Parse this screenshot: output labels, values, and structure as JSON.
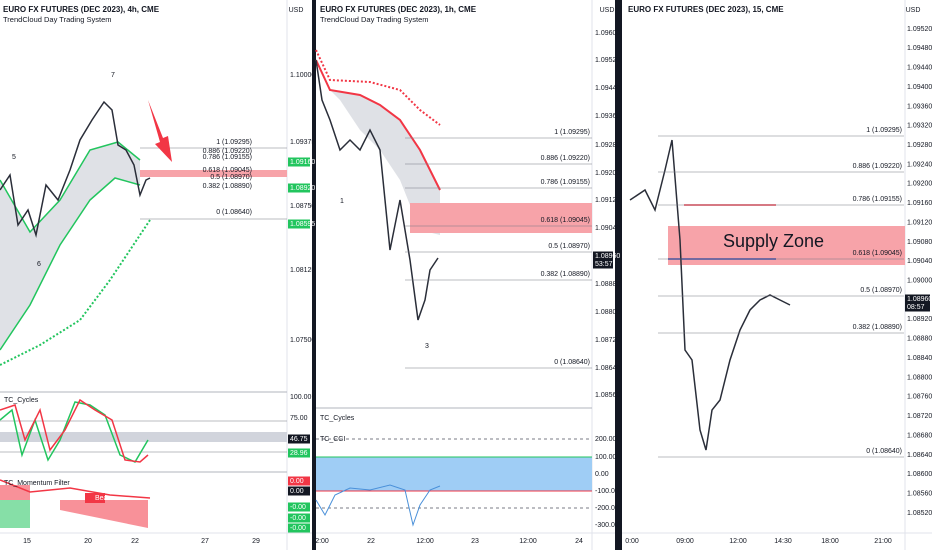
{
  "panels": [
    {
      "title": "EURO FX FUTURES (DEC 2023), 4h, CME",
      "subtitle": "TrendCloud Day Trading System",
      "currency": "USD",
      "price_labels": [
        "1.10000",
        "1.09375",
        "1.08750",
        "1.08125",
        "1.07500"
      ],
      "tags": [
        "1.09160",
        "1.08920",
        "1.08595"
      ],
      "fib_labels": [
        "1 (1.09295)",
        "0.886 (1.09220)",
        "0.786 (1.09155)",
        "0.618 (1.09045)",
        "0.5 (1.08970)",
        "0.382 (1.08890)",
        "0 (1.08640)"
      ],
      "wave_labels": [
        "5",
        "7",
        "6"
      ],
      "time_labels": [
        "15",
        "20",
        "22",
        "27",
        "29"
      ],
      "indicators": [
        "TC_Cycles",
        "TC_Momentum Filter",
        "Bear"
      ],
      "indicator_axis": [
        "100.00",
        "75.00"
      ],
      "indicator_tags": [
        "46.75",
        "28.96",
        "0.00",
        "0.00",
        "-0.00",
        "-0.00",
        "-0.00"
      ]
    },
    {
      "title": "EURO FX FUTURES (DEC 2023), 1h, CME",
      "subtitle": "TrendCloud Day Trading System",
      "currency": "USD",
      "price_labels": [
        "1.09600",
        "1.09520",
        "1.09440",
        "1.09360",
        "1.09280",
        "1.09200",
        "1.09120",
        "1.09040",
        "1.08880",
        "1.08800",
        "1.08720",
        "1.08640",
        "1.08560"
      ],
      "tags": [
        "1.08960",
        "53:57"
      ],
      "fib_labels": [
        "1 (1.09295)",
        "0.886 (1.09220)",
        "0.786 (1.09155)",
        "0.618 (1.09045)",
        "0.5 (1.08970)",
        "0.382 (1.08890)",
        "0 (1.08640)"
      ],
      "wave_labels": [
        "1",
        "3"
      ],
      "time_labels": [
        "2:00",
        "22",
        "12:00",
        "23",
        "12:00",
        "24"
      ],
      "indicators": [
        "TC_Cycles",
        "TC_CCI"
      ],
      "indicator_axis": [
        "200.00",
        "100.00",
        "0.00",
        "-100.00",
        "-200.00",
        "-300.00"
      ],
      "indicator_tags": []
    },
    {
      "title": "EURO FX FUTURES (DEC 2023), 15, CME",
      "subtitle": "",
      "currency": "USD",
      "price_labels": [
        "1.09520",
        "1.09480",
        "1.09440",
        "1.09400",
        "1.09360",
        "1.09320",
        "1.09280",
        "1.09240",
        "1.09200",
        "1.09160",
        "1.09120",
        "1.09080",
        "1.09040",
        "1.09000",
        "1.08960",
        "1.08920",
        "1.08880",
        "1.08840",
        "1.08800",
        "1.08760",
        "1.08720",
        "1.08680",
        "1.08640",
        "1.08600",
        "1.08560",
        "1.08520"
      ],
      "tags": [
        "1.08960",
        "08:57"
      ],
      "fib_labels": [
        "1 (1.09295)",
        "0.886 (1.09220)",
        "0.786 (1.09155)",
        "0.618 (1.09045)",
        "0.5 (1.08970)",
        "0.382 (1.08890)",
        "0 (1.08640)"
      ],
      "zone_label": "Supply Zone",
      "time_labels": [
        "0:00",
        "09:00",
        "12:00",
        "14:30",
        "18:00",
        "21:00"
      ]
    }
  ]
}
